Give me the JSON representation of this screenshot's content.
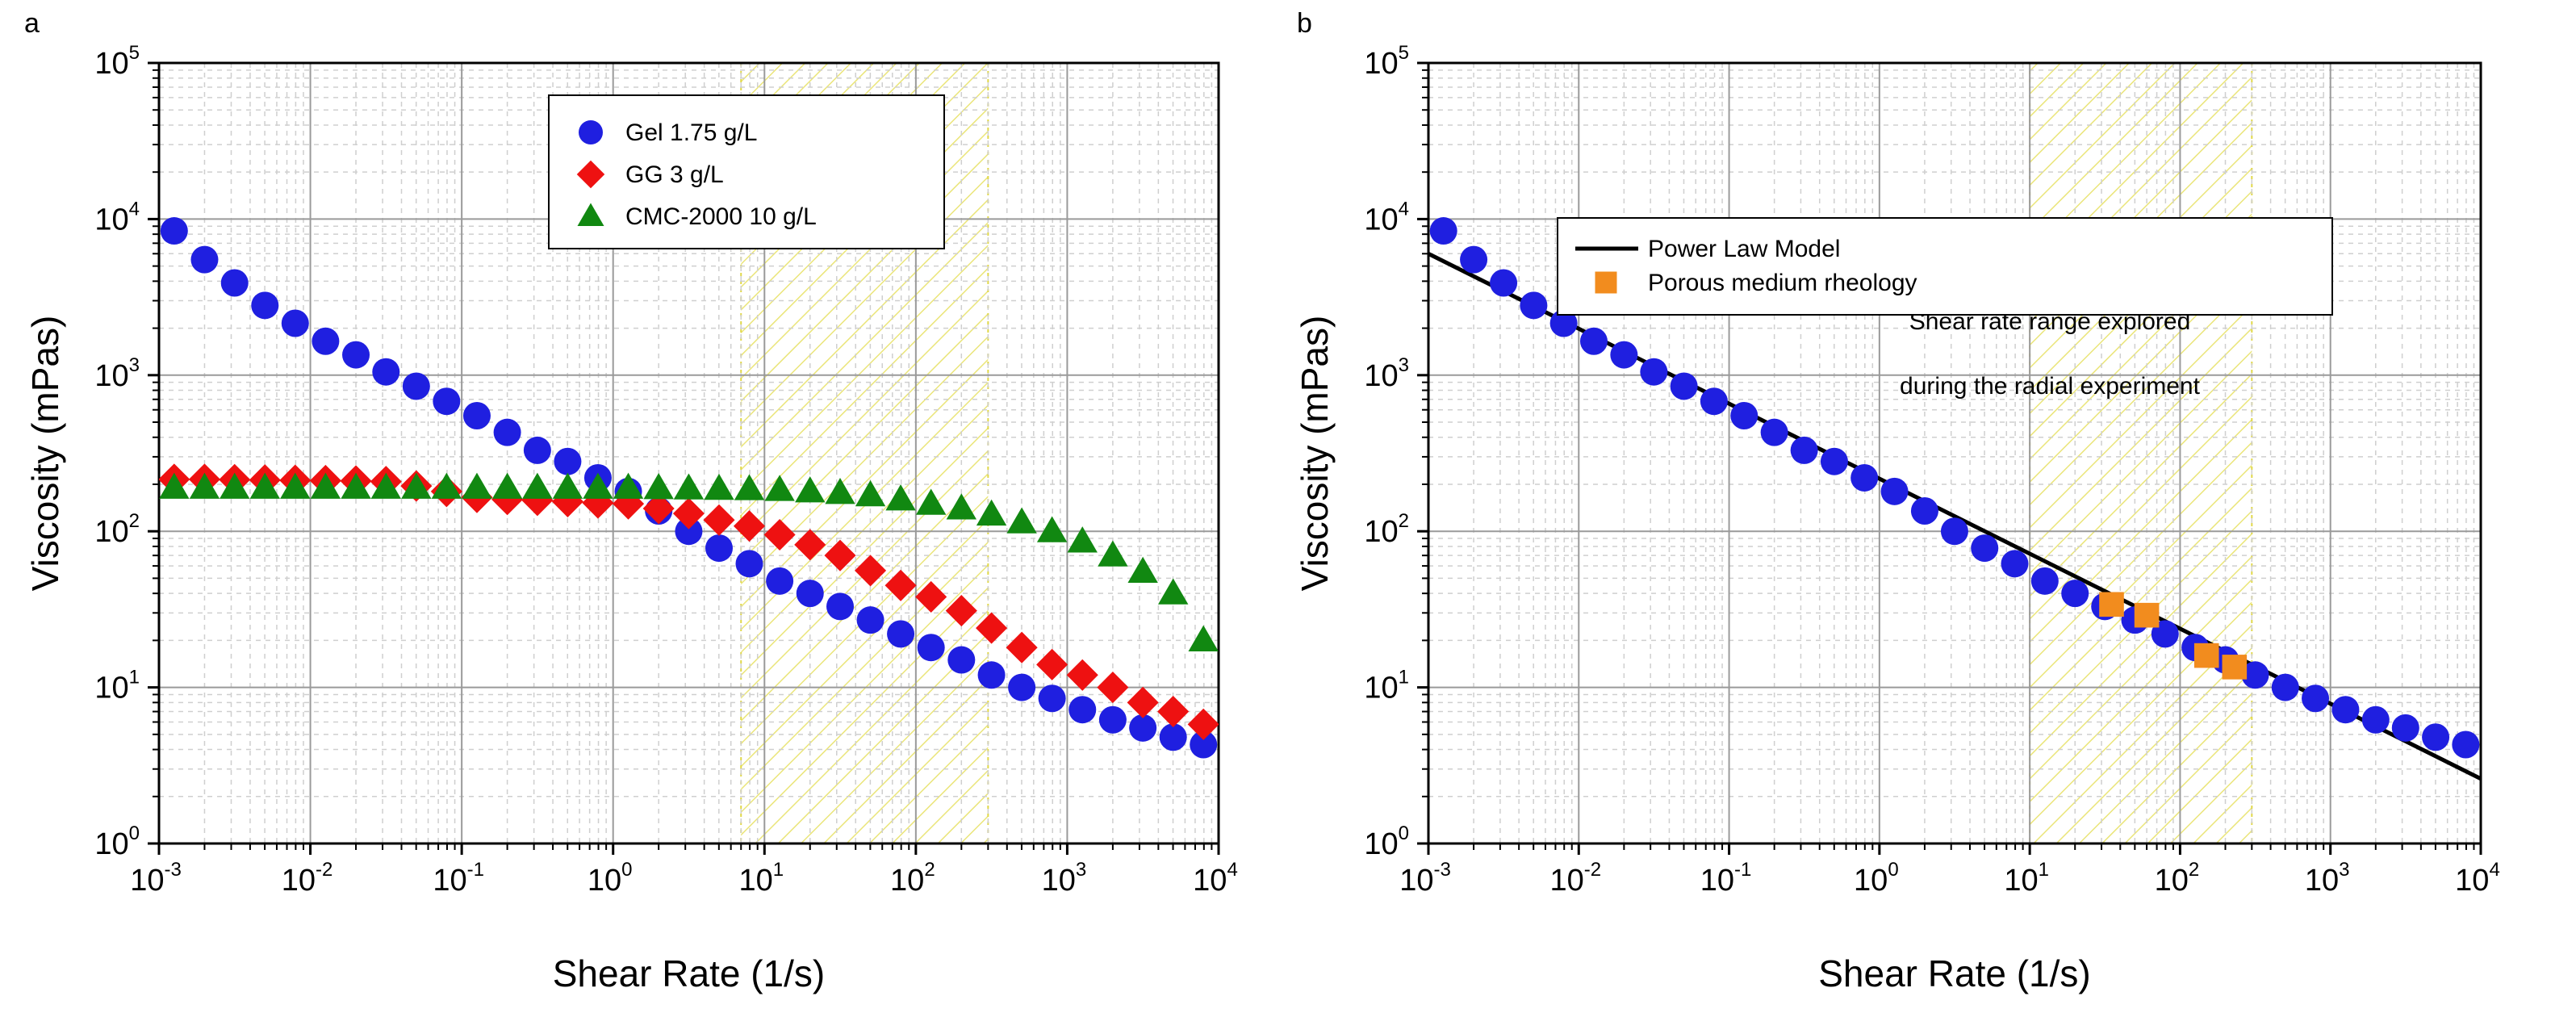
{
  "chart_data": [
    {
      "type": "scatter",
      "panel_label": "a",
      "xlabel": "Shear Rate (1/s)",
      "ylabel": "Viscosity (mPas)",
      "xscale": "log",
      "yscale": "log",
      "xlim": [
        0.001,
        10000
      ],
      "ylim": [
        1,
        100000
      ],
      "x_ticks": [
        {
          "base": "10",
          "exp": "-3"
        },
        {
          "base": "10",
          "exp": "-2"
        },
        {
          "base": "10",
          "exp": "-1"
        },
        {
          "base": "10",
          "exp": "0"
        },
        {
          "base": "10",
          "exp": "1"
        },
        {
          "base": "10",
          "exp": "2"
        },
        {
          "base": "10",
          "exp": "3"
        },
        {
          "base": "10",
          "exp": "4"
        }
      ],
      "y_ticks": [
        {
          "base": "10",
          "exp": "0"
        },
        {
          "base": "10",
          "exp": "1"
        },
        {
          "base": "10",
          "exp": "2"
        },
        {
          "base": "10",
          "exp": "3"
        },
        {
          "base": "10",
          "exp": "4"
        },
        {
          "base": "10",
          "exp": "5"
        }
      ],
      "grid": true,
      "legend_position": "top-center",
      "shaded_range": {
        "x": [
          7,
          300
        ],
        "description": "hatched shear rate range"
      },
      "series": [
        {
          "name": "Gel 1.75 g/L",
          "marker": "circle",
          "color": "#1f1fe0",
          "x": [
            0.00126,
            0.002,
            0.00316,
            0.00501,
            0.00794,
            0.0126,
            0.02,
            0.0316,
            0.0501,
            0.0794,
            0.126,
            0.2,
            0.316,
            0.501,
            0.794,
            1.26,
            2,
            3.16,
            5.01,
            7.94,
            12.6,
            20,
            31.6,
            50.1,
            79.4,
            126,
            200,
            316,
            501,
            794,
            1260,
            2000,
            3160,
            5010,
            7940
          ],
          "y": [
            8400,
            5500,
            3900,
            2800,
            2150,
            1650,
            1350,
            1050,
            850,
            680,
            550,
            430,
            330,
            280,
            220,
            180,
            135,
            100,
            78,
            62,
            48,
            40,
            33,
            27,
            22,
            18,
            15,
            12,
            10,
            8.5,
            7.2,
            6.2,
            5.5,
            4.8,
            4.3
          ]
        },
        {
          "name": "GG 3 g/L",
          "marker": "diamond",
          "color": "#ee1111",
          "x": [
            0.00126,
            0.002,
            0.00316,
            0.00501,
            0.00794,
            0.0126,
            0.02,
            0.0316,
            0.0501,
            0.0794,
            0.126,
            0.2,
            0.316,
            0.501,
            0.794,
            1.26,
            2,
            3.16,
            5.01,
            7.94,
            12.6,
            20,
            31.6,
            50.1,
            79.4,
            126,
            200,
            316,
            501,
            794,
            1260,
            2000,
            3160,
            5010,
            7940
          ],
          "y": [
            215,
            215,
            214,
            213,
            212,
            211,
            210,
            208,
            195,
            180,
            165,
            160,
            158,
            155,
            152,
            150,
            140,
            130,
            118,
            108,
            95,
            82,
            70,
            56,
            45,
            38,
            31,
            24,
            18,
            14,
            12,
            10,
            8,
            7,
            5.8
          ]
        },
        {
          "name": "CMC-2000 10 g/L",
          "marker": "triangle",
          "color": "#118811",
          "x": [
            0.00126,
            0.002,
            0.00316,
            0.00501,
            0.00794,
            0.0126,
            0.02,
            0.0316,
            0.0501,
            0.0794,
            0.126,
            0.2,
            0.316,
            0.501,
            0.794,
            1.26,
            2,
            3.16,
            5.01,
            7.94,
            12.6,
            20,
            31.6,
            50.1,
            79.4,
            126,
            200,
            316,
            501,
            794,
            1260,
            2000,
            3160,
            5010,
            7940
          ],
          "y": [
            190,
            190,
            190,
            190,
            190,
            190,
            190,
            190,
            190,
            190,
            190,
            190,
            190,
            190,
            190,
            190,
            189,
            188,
            187,
            186,
            184,
            180,
            176,
            170,
            160,
            150,
            140,
            128,
            114,
            100,
            86,
            70,
            55,
            40,
            20
          ]
        }
      ]
    },
    {
      "type": "scatter",
      "panel_label": "b",
      "xlabel": "Shear Rate (1/s)",
      "ylabel": "Viscosity (mPas)",
      "xscale": "log",
      "yscale": "log",
      "xlim": [
        0.001,
        10000
      ],
      "ylim": [
        1,
        100000
      ],
      "x_ticks": [
        {
          "base": "10",
          "exp": "-3"
        },
        {
          "base": "10",
          "exp": "-2"
        },
        {
          "base": "10",
          "exp": "-1"
        },
        {
          "base": "10",
          "exp": "0"
        },
        {
          "base": "10",
          "exp": "1"
        },
        {
          "base": "10",
          "exp": "2"
        },
        {
          "base": "10",
          "exp": "3"
        },
        {
          "base": "10",
          "exp": "4"
        }
      ],
      "y_ticks": [
        {
          "base": "10",
          "exp": "0"
        },
        {
          "base": "10",
          "exp": "1"
        },
        {
          "base": "10",
          "exp": "2"
        },
        {
          "base": "10",
          "exp": "3"
        },
        {
          "base": "10",
          "exp": "4"
        },
        {
          "base": "10",
          "exp": "5"
        }
      ],
      "grid": true,
      "legend_position": "top-center",
      "shaded_range": {
        "x": [
          10,
          300
        ],
        "description": "hatched shear rate range"
      },
      "annotation": [
        "Shear rate range explored",
        "during the radial experiment"
      ],
      "power_law_line": {
        "name": "Power Law Model",
        "color": "#000000",
        "x": [
          0.001,
          10000
        ],
        "y": [
          6000,
          2.6
        ]
      },
      "series": [
        {
          "name": "Gel 1.75 g/L",
          "marker": "circle",
          "color": "#1f1fe0",
          "in_legend": false,
          "x": [
            0.00126,
            0.002,
            0.00316,
            0.00501,
            0.00794,
            0.0126,
            0.02,
            0.0316,
            0.0501,
            0.0794,
            0.126,
            0.2,
            0.316,
            0.501,
            0.794,
            1.26,
            2,
            3.16,
            5.01,
            7.94,
            12.6,
            20,
            31.6,
            50.1,
            79.4,
            126,
            200,
            316,
            501,
            794,
            1260,
            2000,
            3160,
            5010,
            7940
          ],
          "y": [
            8400,
            5500,
            3900,
            2800,
            2150,
            1650,
            1350,
            1050,
            850,
            680,
            550,
            430,
            330,
            280,
            220,
            180,
            135,
            100,
            78,
            62,
            48,
            40,
            33,
            27,
            22,
            18,
            15,
            12,
            10,
            8.5,
            7.2,
            6.2,
            5.5,
            4.8,
            4.3
          ]
        },
        {
          "name": "Porous medium rheology",
          "marker": "square",
          "color": "#f28c1e",
          "x": [
            35,
            60,
            150,
            230
          ],
          "y": [
            34,
            29,
            16,
            13.5
          ]
        }
      ]
    }
  ]
}
